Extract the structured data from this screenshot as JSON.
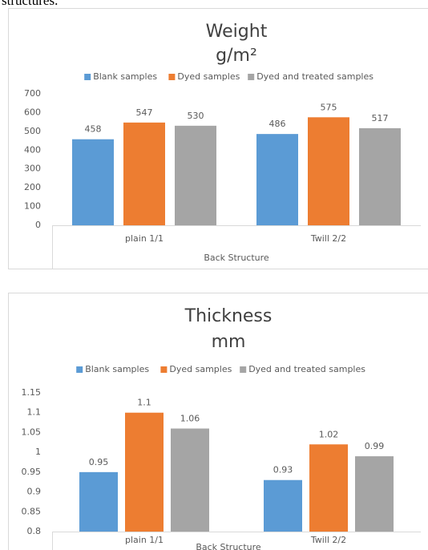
{
  "page_text": "structures.",
  "chart_data": [
    {
      "type": "bar",
      "title": "Weight",
      "subtitle": "g/m²",
      "categories": [
        "plain 1/1",
        "Twill 2/2"
      ],
      "x_label": "Back Structure",
      "series": [
        {
          "name": "Blank samples",
          "color": "#5b9bd5",
          "values": [
            458,
            486
          ]
        },
        {
          "name": "Dyed samples",
          "color": "#ed7d31",
          "values": [
            547,
            575
          ]
        },
        {
          "name": "Dyed and treated samples",
          "color": "#a5a5a5",
          "values": [
            530,
            517
          ]
        }
      ],
      "ylim": [
        0,
        700
      ],
      "yticks": [
        0,
        100,
        200,
        300,
        400,
        500,
        600,
        700
      ],
      "grid": false,
      "legend": "top"
    },
    {
      "type": "bar",
      "title": "Thickness",
      "subtitle": "mm",
      "categories": [
        "plain 1/1",
        "Twill 2/2"
      ],
      "x_label": "Back Structure",
      "series": [
        {
          "name": "Blank samples",
          "color": "#5b9bd5",
          "values": [
            0.95,
            0.93
          ]
        },
        {
          "name": "Dyed samples",
          "color": "#ed7d31",
          "values": [
            1.1,
            1.02
          ]
        },
        {
          "name": "Dyed and treated samples",
          "color": "#a5a5a5",
          "values": [
            1.06,
            0.99
          ]
        }
      ],
      "ylim": [
        0.8,
        1.15
      ],
      "yticks": [
        0.8,
        0.85,
        0.9,
        0.95,
        1,
        1.05,
        1.1,
        1.15
      ],
      "grid": false,
      "legend": "top"
    }
  ]
}
